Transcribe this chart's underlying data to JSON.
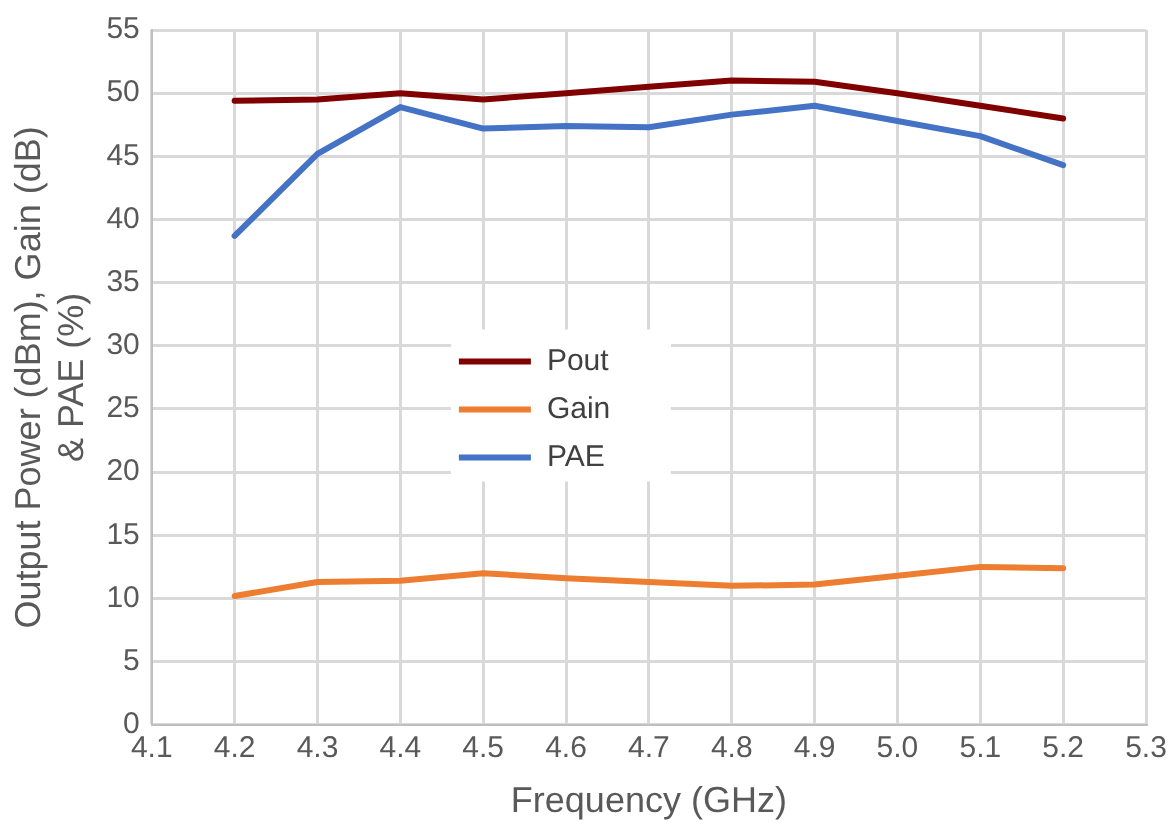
{
  "chart_data": {
    "type": "line",
    "xlabel": "Frequency (GHz)",
    "ylabel": "Output Power (dBm), Gain (dB) & PAE (%)",
    "x": [
      4.2,
      4.3,
      4.4,
      4.5,
      4.6,
      4.7,
      4.8,
      4.9,
      5.0,
      5.1,
      5.2
    ],
    "series": [
      {
        "name": "Pout",
        "color": "#800000",
        "values": [
          49.4,
          49.5,
          50,
          49.5,
          50,
          50.5,
          51,
          50.9,
          50,
          49,
          48
        ]
      },
      {
        "name": "Gain",
        "color": "#ed7d31",
        "values": [
          10.2,
          11.3,
          11.4,
          12,
          11.6,
          11.3,
          11,
          11.1,
          11.8,
          12.5,
          12.4
        ]
      },
      {
        "name": "PAE",
        "color": "#4472c4",
        "values": [
          38.7,
          45.2,
          48.9,
          47.2,
          47.4,
          47.3,
          48.3,
          49,
          47.8,
          46.6,
          44.3
        ]
      }
    ],
    "xlim": [
      4.1,
      5.3
    ],
    "xticks": [
      {
        "value": 4.1,
        "label": "4.1"
      },
      {
        "value": 4.2,
        "label": "4.2"
      },
      {
        "value": 4.3,
        "label": "4.3"
      },
      {
        "value": 4.4,
        "label": "4.4"
      },
      {
        "value": 4.5,
        "label": "4.5"
      },
      {
        "value": 4.6,
        "label": "4.6"
      },
      {
        "value": 4.7,
        "label": "4.7"
      },
      {
        "value": 4.8,
        "label": "4.8"
      },
      {
        "value": 4.9,
        "label": "4.9"
      },
      {
        "value": 5.0,
        "label": "5.0"
      },
      {
        "value": 5.1,
        "label": "5.1"
      },
      {
        "value": 5.2,
        "label": "5.2"
      },
      {
        "value": 5.3,
        "label": "5.3"
      }
    ],
    "ylim": [
      0,
      55
    ],
    "yticks": [
      0,
      5,
      10,
      15,
      20,
      25,
      30,
      35,
      40,
      45,
      50,
      55
    ],
    "grid": true,
    "legend": "center",
    "marker": "none",
    "line_style": "solid"
  }
}
